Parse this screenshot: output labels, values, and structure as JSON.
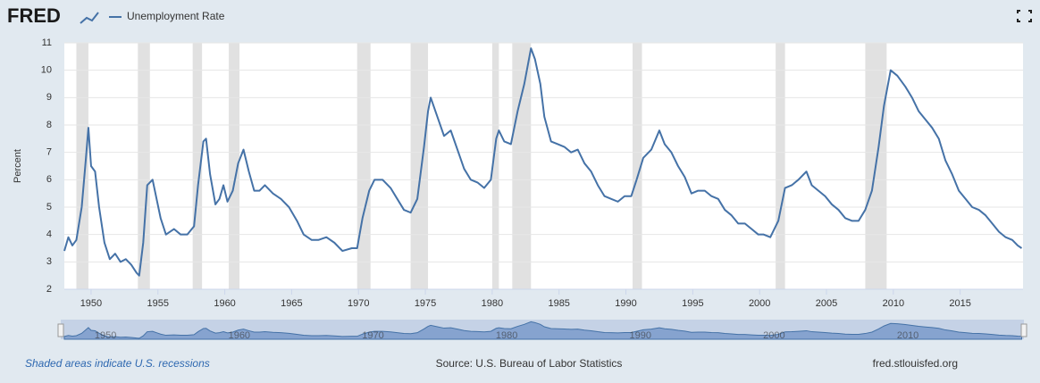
{
  "logo": "FRED",
  "chart_data": {
    "type": "line",
    "y_label": "Percent",
    "x": [
      1948.0,
      1948.3,
      1948.6,
      1948.9,
      1949.3,
      1949.6,
      1949.8,
      1950.0,
      1950.3,
      1950.6,
      1951.0,
      1951.4,
      1951.8,
      1952.2,
      1952.6,
      1953.0,
      1953.4,
      1953.6,
      1953.9,
      1954.2,
      1954.6,
      1954.9,
      1955.2,
      1955.6,
      1956.2,
      1956.7,
      1957.2,
      1957.7,
      1958.0,
      1958.4,
      1958.6,
      1958.9,
      1959.3,
      1959.6,
      1959.9,
      1960.2,
      1960.6,
      1961.0,
      1961.4,
      1961.8,
      1962.2,
      1962.6,
      1963.0,
      1963.6,
      1964.2,
      1964.8,
      1965.4,
      1965.9,
      1966.5,
      1967.0,
      1967.6,
      1968.2,
      1968.8,
      1969.5,
      1969.9,
      1970.3,
      1970.8,
      1971.2,
      1971.8,
      1972.4,
      1972.9,
      1973.4,
      1973.9,
      1974.4,
      1974.9,
      1975.2,
      1975.4,
      1975.9,
      1976.4,
      1976.9,
      1977.4,
      1977.9,
      1978.4,
      1978.9,
      1979.4,
      1979.9,
      1980.3,
      1980.5,
      1980.9,
      1981.4,
      1981.9,
      1982.4,
      1982.9,
      1983.2,
      1983.6,
      1983.9,
      1984.4,
      1984.9,
      1985.4,
      1985.9,
      1986.4,
      1986.9,
      1987.4,
      1987.9,
      1988.4,
      1988.9,
      1989.4,
      1989.9,
      1990.4,
      1990.8,
      1991.3,
      1991.9,
      1992.5,
      1992.9,
      1993.4,
      1993.9,
      1994.4,
      1994.9,
      1995.4,
      1995.9,
      1996.4,
      1996.9,
      1997.4,
      1997.9,
      1998.4,
      1998.9,
      1999.4,
      1999.9,
      2000.3,
      2000.8,
      2001.4,
      2001.9,
      2002.4,
      2002.9,
      2003.5,
      2003.9,
      2004.4,
      2004.9,
      2005.4,
      2005.9,
      2006.4,
      2006.9,
      2007.4,
      2007.9,
      2008.4,
      2008.9,
      2009.3,
      2009.8,
      2010.3,
      2010.9,
      2011.4,
      2011.9,
      2012.4,
      2012.9,
      2013.4,
      2013.9,
      2014.4,
      2014.9,
      2015.4,
      2015.9,
      2016.4,
      2016.9,
      2017.4,
      2017.9,
      2018.4,
      2018.9,
      2019.3,
      2019.6
    ],
    "series": [
      {
        "name": "Unemployment Rate",
        "color": "#4572a7",
        "values": [
          3.4,
          3.9,
          3.6,
          3.8,
          5.0,
          6.7,
          7.9,
          6.5,
          6.3,
          5.0,
          3.7,
          3.1,
          3.3,
          3.0,
          3.1,
          2.9,
          2.6,
          2.5,
          3.7,
          5.8,
          6.0,
          5.3,
          4.6,
          4.0,
          4.2,
          4.0,
          4.0,
          4.3,
          5.8,
          7.4,
          7.5,
          6.2,
          5.1,
          5.3,
          5.8,
          5.2,
          5.6,
          6.6,
          7.1,
          6.3,
          5.6,
          5.6,
          5.8,
          5.5,
          5.3,
          5.0,
          4.5,
          4.0,
          3.8,
          3.8,
          3.9,
          3.7,
          3.4,
          3.5,
          3.5,
          4.6,
          5.6,
          6.0,
          6.0,
          5.7,
          5.3,
          4.9,
          4.8,
          5.3,
          7.2,
          8.5,
          9.0,
          8.3,
          7.6,
          7.8,
          7.1,
          6.4,
          6.0,
          5.9,
          5.7,
          6.0,
          7.5,
          7.8,
          7.4,
          7.3,
          8.5,
          9.5,
          10.8,
          10.4,
          9.5,
          8.3,
          7.4,
          7.3,
          7.2,
          7.0,
          7.1,
          6.6,
          6.3,
          5.8,
          5.4,
          5.3,
          5.2,
          5.4,
          5.4,
          6.0,
          6.8,
          7.1,
          7.8,
          7.3,
          7.0,
          6.5,
          6.1,
          5.5,
          5.6,
          5.6,
          5.4,
          5.3,
          4.9,
          4.7,
          4.4,
          4.4,
          4.2,
          4.0,
          4.0,
          3.9,
          4.5,
          5.7,
          5.8,
          6.0,
          6.3,
          5.8,
          5.6,
          5.4,
          5.1,
          4.9,
          4.6,
          4.5,
          4.5,
          4.9,
          5.6,
          7.2,
          8.7,
          10.0,
          9.8,
          9.4,
          9.0,
          8.5,
          8.2,
          7.9,
          7.5,
          6.7,
          6.2,
          5.6,
          5.3,
          5.0,
          4.9,
          4.7,
          4.4,
          4.1,
          3.9,
          3.8,
          3.6,
          3.5
        ]
      }
    ],
    "recessions": [
      [
        1948.9,
        1949.8
      ],
      [
        1953.5,
        1954.4
      ],
      [
        1957.6,
        1958.3
      ],
      [
        1960.3,
        1961.1
      ],
      [
        1969.9,
        1970.9
      ],
      [
        1973.9,
        1975.2
      ],
      [
        1980.0,
        1980.5
      ],
      [
        1981.5,
        1982.9
      ],
      [
        1990.5,
        1991.2
      ],
      [
        2001.2,
        2001.9
      ],
      [
        2007.9,
        2009.5
      ]
    ],
    "xlim": [
      1948,
      2019.7
    ],
    "xticks": [
      1950,
      1955,
      1960,
      1965,
      1970,
      1975,
      1980,
      1985,
      1990,
      1995,
      2000,
      2005,
      2010,
      2015
    ],
    "ylim": [
      2,
      11
    ],
    "yticks": [
      2,
      3,
      4,
      5,
      6,
      7,
      8,
      9,
      10,
      11
    ],
    "grid": true,
    "navigator_ticks": [
      1950,
      1960,
      1970,
      1980,
      1990,
      2000,
      2010
    ],
    "note": "Shaded areas indicate U.S. recessions",
    "source": "Source: U.S. Bureau of Labor Statistics",
    "site": "fred.stlouisfed.org"
  }
}
